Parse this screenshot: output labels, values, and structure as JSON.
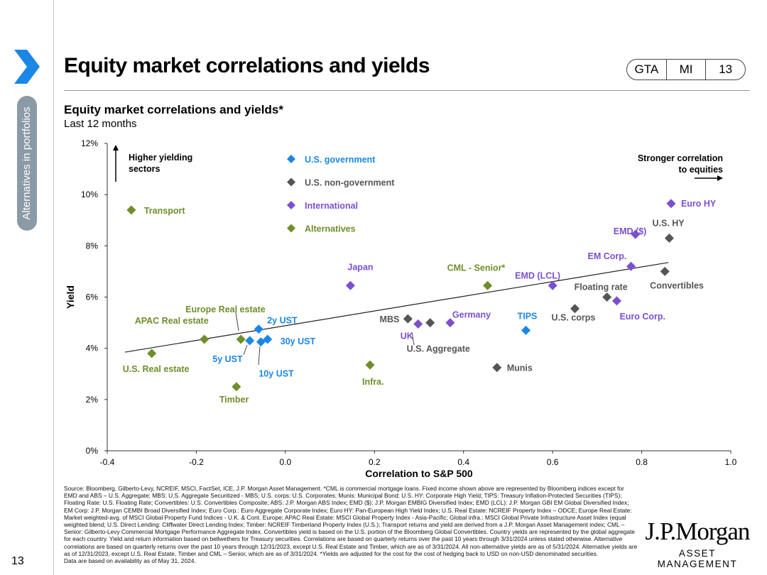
{
  "header": {
    "title": "Equity market correlations and yields",
    "tabs": [
      "GTA",
      "MI",
      "13"
    ],
    "side_label": "Alternatives in portfolios",
    "page_number": "13"
  },
  "colors": {
    "us_gov": "#1a87e6",
    "us_nongov": "#555555",
    "international": "#7b4fcf",
    "alternatives": "#6e8e2b",
    "chevron": "#1a87e6"
  },
  "chart_data": {
    "type": "scatter",
    "title": "Equity market correlations and yields*",
    "subtitle": "Last 12 months",
    "xlabel": "Correlation to S&P 500",
    "ylabel": "Yield",
    "xlim": [
      -0.4,
      1.0
    ],
    "ylim": [
      0,
      12
    ],
    "x_ticks": [
      "-0.4",
      "-0.2",
      "0.0",
      "0.2",
      "0.4",
      "0.6",
      "0.8",
      "1.0"
    ],
    "y_ticks": [
      "0%",
      "2%",
      "4%",
      "6%",
      "8%",
      "10%",
      "12%"
    ],
    "trendline": {
      "x": [
        -0.36,
        0.86
      ],
      "y": [
        3.85,
        7.35
      ]
    },
    "annotations": {
      "higher_yielding": [
        "Higher yielding",
        "sectors"
      ],
      "stronger_corr": [
        "Stronger correlation",
        "to equities"
      ]
    },
    "legend": [
      {
        "key": "us_gov",
        "label": "U.S. government"
      },
      {
        "key": "us_nongov",
        "label": "U.S. non-government"
      },
      {
        "key": "international",
        "label": "International"
      },
      {
        "key": "alternatives",
        "label": "Alternatives"
      }
    ],
    "points": [
      {
        "label": "2y UST",
        "x": -0.06,
        "y": 4.75,
        "series": "us_gov"
      },
      {
        "label": "5y UST",
        "x": -0.08,
        "y": 4.3,
        "series": "us_gov"
      },
      {
        "label": "10y UST",
        "x": -0.055,
        "y": 4.25,
        "series": "us_gov"
      },
      {
        "label": "30y UST",
        "x": -0.04,
        "y": 4.35,
        "series": "us_gov"
      },
      {
        "label": "TIPS",
        "x": 0.54,
        "y": 4.7,
        "series": "us_gov"
      },
      {
        "label": "MBS",
        "x": 0.275,
        "y": 5.15,
        "series": "us_nongov"
      },
      {
        "label": "U.S. Aggregate",
        "x": 0.325,
        "y": 5.0,
        "series": "us_nongov"
      },
      {
        "label": "Munis",
        "x": 0.475,
        "y": 3.25,
        "series": "us_nongov"
      },
      {
        "label": "U.S. corps",
        "x": 0.65,
        "y": 5.55,
        "series": "us_nongov"
      },
      {
        "label": "Floating rate",
        "x": 0.722,
        "y": 6.0,
        "series": "us_nongov"
      },
      {
        "label": "Convertibles",
        "x": 0.852,
        "y": 7.0,
        "series": "us_nongov"
      },
      {
        "label": "U.S. HY",
        "x": 0.862,
        "y": 8.3,
        "series": "us_nongov"
      },
      {
        "label": "Japan",
        "x": 0.146,
        "y": 6.45,
        "series": "international"
      },
      {
        "label": "UK",
        "x": 0.298,
        "y": 4.95,
        "series": "international"
      },
      {
        "label": "Germany",
        "x": 0.37,
        "y": 5.0,
        "series": "international"
      },
      {
        "label": "EMD (LCL)",
        "x": 0.6,
        "y": 6.45,
        "series": "international"
      },
      {
        "label": "EM Corp.",
        "x": 0.776,
        "y": 7.2,
        "series": "international"
      },
      {
        "label": "EMD ($)",
        "x": 0.786,
        "y": 8.45,
        "series": "international"
      },
      {
        "label": "Euro HY",
        "x": 0.866,
        "y": 9.65,
        "series": "international"
      },
      {
        "label": "Euro Corp.",
        "x": 0.744,
        "y": 5.85,
        "series": "international"
      },
      {
        "label": "Transport",
        "x": -0.346,
        "y": 9.4,
        "series": "alternatives"
      },
      {
        "label": "U.S. Real estate",
        "x": -0.3,
        "y": 3.8,
        "series": "alternatives"
      },
      {
        "label": "APAC Real estate",
        "x": -0.182,
        "y": 4.35,
        "series": "alternatives"
      },
      {
        "label": "Europe Real estate",
        "x": -0.1,
        "y": 4.35,
        "series": "alternatives"
      },
      {
        "label": "Timber",
        "x": -0.11,
        "y": 2.5,
        "series": "alternatives"
      },
      {
        "label": "Infra.",
        "x": 0.19,
        "y": 3.35,
        "series": "alternatives"
      },
      {
        "label": "CML - Senior*",
        "x": 0.454,
        "y": 6.45,
        "series": "alternatives"
      }
    ]
  },
  "source_text": "Source: Bloomberg, Gilberto-Levy, NCREIF, MSCI, FactSet, ICE, J.P. Morgan Asset Management. *CML is commercial mortgage loans. Fixed income shown above are represented by Bloomberg indices except for EMD and ABS – U.S. Aggregate; MBS: U.S. Aggregate Securitized - MBS; U.S. corps: U.S. Corporates; Munis: Municipal Bond; U.S. HY: Corporate High Yield; TIPS: Treasury Inflation-Protected Securities (TIPS); Floating Rate: U.S. Floating Rate; Convertibles: U.S. Convertibles Composite; ABS: J.P. Morgan ABS Index; EMD ($): J.P. Morgan EMBIG Diversified Index; EMD (LCL): J.P. Morgan GBI EM Global Diversified Index; EM Corp: J.P. Morgan CEMBI Broad Diversified Index; Euro Corp.: Euro Aggregate Corporate Index; Euro HY: Pan-European High Yield Index; U.S. Real Estate: NCREIF Property Index – ODCE; Europe Real Estate: Market weighted-avg. of MSCI Global Property Fund Indices - U.K. & Cont. Europe; APAC Real Estate: MSCI Global Property Index - Asia-Pacific; Global infra.: MSCI Global Private Infrastructure Asset Index (equal weighted blend; U.S. Direct Lending: Cliffwater Direct Lending Index; Timber: NCREIF Timberland Property Index (U.S.); Transport returns and yield are derived from a J.P. Morgan Asset Management index; CML – Senior: Gilberto-Levy Commercial Mortgage Performance Aggregate Index. Convertibles yield is based on the U.S. portion of the Bloomberg Global Convertibles. Country yields are represented by the global aggregate for each country. Yield and return information based on bellwethers for Treasury securities. Correlations are based on quarterly returns over the past 10 years through 3/31/2024 unless stated otherwise. Alternative correlations are based on quarterly returns over the past 10 years through 12/31/2023, except U.S. Real Estate and Timber, which are as of 3/31/2024. All non-alternative yields are as of 5/31/2024. Alternative yields are as of 12/31/2023, except U.S. Real Estate, Timber and CML – Senior, which are as of 3/31/2024. *Yields are adjusted for the cost for the cost of hedging back to USD on non-USD denominated securities.",
  "source_date": "Data are based on availability as of May 31, 2024.",
  "logo": {
    "name": "J.P.Morgan",
    "sub": "ASSET MANAGEMENT"
  }
}
